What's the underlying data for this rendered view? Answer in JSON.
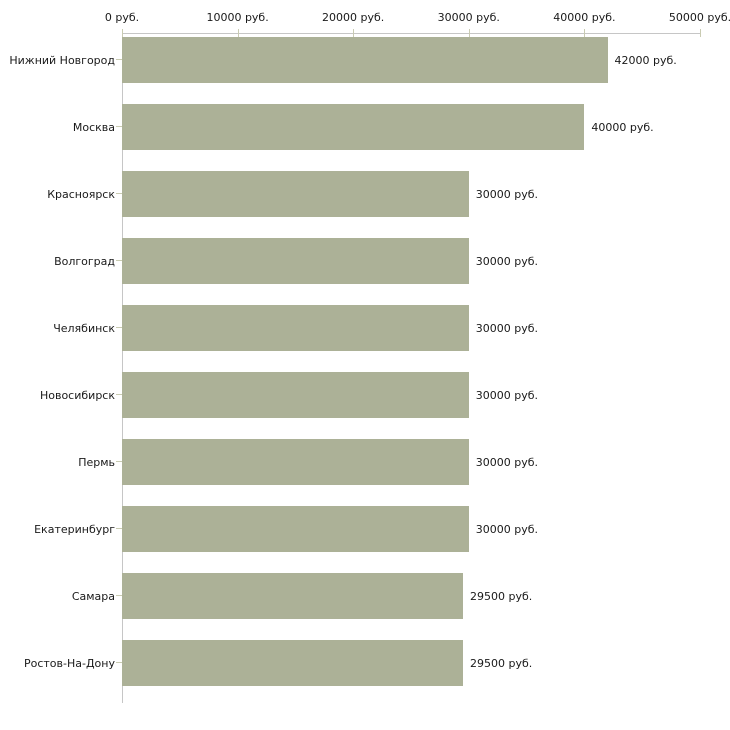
{
  "chart_data": {
    "type": "bar",
    "orientation": "horizontal",
    "title": "",
    "xlabel": "",
    "ylabel": "",
    "categories": [
      "Нижний Новгород",
      "Москва",
      "Красноярск",
      "Волгоград",
      "Челябинск",
      "Новосибирск",
      "Пермь",
      "Екатеринбург",
      "Самара",
      "Ростов-На-Дону"
    ],
    "values": [
      42000,
      40000,
      30000,
      30000,
      30000,
      30000,
      30000,
      30000,
      29500,
      29500
    ],
    "value_labels": [
      "42000 руб.",
      "40000 руб.",
      "30000 руб.",
      "30000 руб.",
      "30000 руб.",
      "30000 руб.",
      "30000 руб.",
      "30000 руб.",
      "29500 руб.",
      "29500 руб."
    ],
    "x_tick_labels": [
      "0 руб.",
      "10000 руб.",
      "20000 руб.",
      "30000 руб.",
      "40000 руб.",
      "50000 руб."
    ],
    "x_tick_values": [
      0,
      10000,
      20000,
      30000,
      40000,
      50000
    ],
    "xlim": [
      0,
      50000
    ],
    "grid": false,
    "legend": false,
    "axis_position": "top",
    "colors": {
      "bar": "#acb197",
      "axis_line": "#c6c6c6",
      "tick_mark": "#c9cbb2",
      "text": "#1a1a1a",
      "background": "#ffffff"
    }
  }
}
